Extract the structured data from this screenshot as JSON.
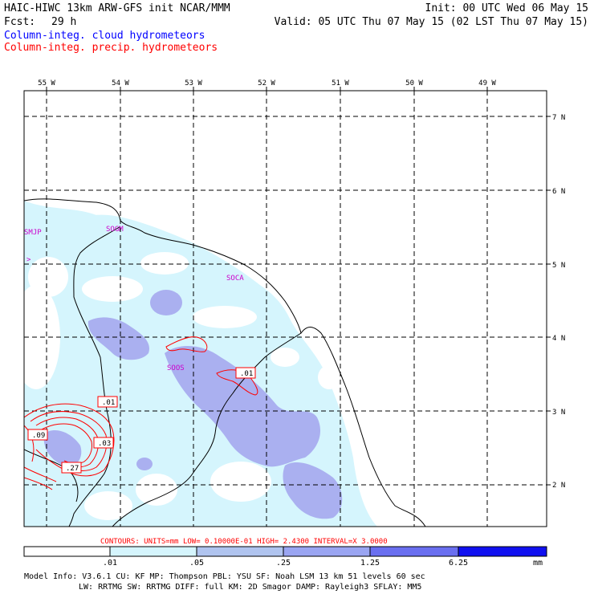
{
  "header": {
    "title_left": "HAIC-HIWC 13km ARW-GFS init   NCAR/MMM",
    "init": "Init: 00 UTC Wed 06 May 15",
    "fcst_label": "Fcst:",
    "fcst_value": "29 h",
    "valid": "Valid: 05 UTC Thu 07 May 15 (02 LST Thu 07 May 15)",
    "line_cloud": "Column-integ. cloud hydrometeors",
    "line_precip": "Column-integ. precip. hydrometeors",
    "cloud_color": "#0000ff",
    "precip_color": "#ff0000"
  },
  "map": {
    "lon_labels": [
      "55 W",
      "54 W",
      "53 W",
      "52 W",
      "51 W",
      "50 W",
      "49 W"
    ],
    "lat_labels": [
      "7 N",
      "6 N",
      "5 N",
      "4 N",
      "3 N",
      "2 N"
    ],
    "stations": [
      {
        "id": "SMJP"
      },
      {
        "id": "SOGM"
      },
      {
        "id": "SOCA"
      },
      {
        "id": "SOOS"
      }
    ],
    "contour_labels": [
      ".01",
      ".01",
      ".09",
      ".03",
      ".27"
    ]
  },
  "contours_info": "CONTOURS:  UNITS=mm  LOW= 0.10000E-01  HIGH=  2.4300      INTERVAL=X  3.0000",
  "colorbar": {
    "ticks": [
      ".01",
      ".05",
      ".25",
      "1.25",
      "6.25"
    ],
    "unit": "mm",
    "colors": [
      "#ffffff",
      "#d5f5fd",
      "#b0c4ef",
      "#9aa5f2",
      "#6a6ff0",
      "#1010f0"
    ]
  },
  "model_info": {
    "line1": "Model Info: V3.6.1   CU: KF      MP: Thompson    PBL: YSU      SF: Noah LSM    13 km   51 levels  60 sec",
    "line2": "LW: RRTMG   SW: RRTMG  DIFF: full   KM: 2D Smagor DAMP: Rayleigh3  SFLAY: MM5"
  }
}
